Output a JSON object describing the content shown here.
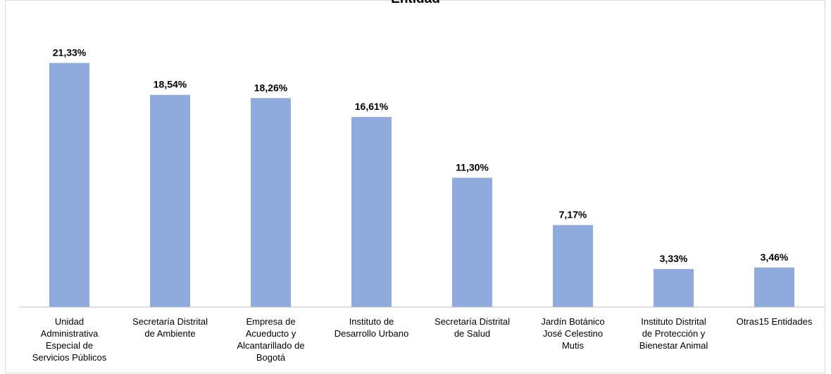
{
  "chart_data": {
    "type": "bar",
    "title": "Entidad",
    "categories": [
      [
        "Unidad",
        "Administrativa",
        "Especial de",
        "Servicios Públicos"
      ],
      [
        "Secretaría Distrital",
        "de Ambiente"
      ],
      [
        "Empresa de",
        "Acueducto y",
        "Alcantarillado de",
        "Bogotá"
      ],
      [
        "Instituto de",
        "Desarrollo Urbano"
      ],
      [
        "Secretaría Distrital",
        "de Salud"
      ],
      [
        "Jardín Botánico",
        "José Celestino",
        "Mutis"
      ],
      [
        "Instituto Distrital",
        "de Protección y",
        "Bienestar Animal"
      ],
      [
        "Otras15 Entidades"
      ]
    ],
    "values": [
      21.33,
      18.54,
      18.26,
      16.61,
      11.3,
      7.17,
      3.33,
      3.46
    ],
    "value_labels": [
      "21,33%",
      "18,54%",
      "18,26%",
      "16,61%",
      "11,30%",
      "7,17%",
      "3,33%",
      "3,46%"
    ],
    "color": "#8faadc",
    "ylim": [
      0,
      24
    ]
  }
}
